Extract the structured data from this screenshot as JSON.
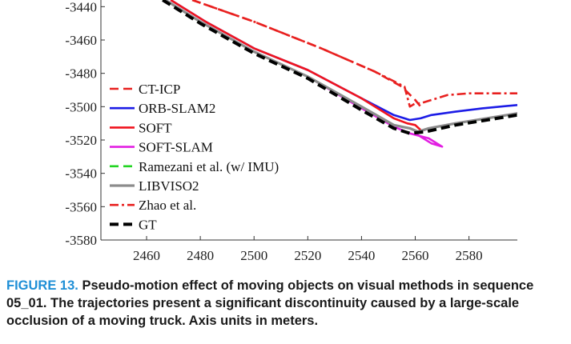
{
  "caption": {
    "label": "FIGURE 13.",
    "text": "Pseudo-motion effect of moving objects on visual methods in sequence 05_01. The trajectories present a significant discontinuity caused by a large-scale occlusion of a moving truck. Axis units in meters."
  },
  "chart_data": {
    "type": "line",
    "title": "",
    "xlabel": "",
    "ylabel": "",
    "xlim": [
      2443,
      2598
    ],
    "ylim": [
      -3580,
      -3436
    ],
    "x_ticks": [
      2460,
      2480,
      2500,
      2520,
      2540,
      2560,
      2580
    ],
    "y_ticks": [
      -3440,
      -3460,
      -3480,
      -3500,
      -3520,
      -3540,
      -3560,
      -3580
    ],
    "x_tick_labels": [
      "2460",
      "2480",
      "2500",
      "2520",
      "2540",
      "2560",
      "2580"
    ],
    "y_tick_labels": [
      "-3440",
      "-3460",
      "-3480",
      "-3500",
      "-3520",
      "-3540",
      "-3560",
      "-3580"
    ],
    "grid": false,
    "legend_position": "left",
    "series": [
      {
        "name": "Zhao et al.",
        "color": "#e8201f",
        "dash": "dashdot",
        "points": [
          [
            2477,
            -3436
          ],
          [
            2500,
            -3449
          ],
          [
            2525,
            -3465
          ],
          [
            2545,
            -3479
          ],
          [
            2556,
            -3488
          ],
          [
            2558,
            -3500
          ],
          [
            2560,
            -3498
          ],
          [
            2562,
            -3498
          ],
          [
            2566,
            -3496
          ],
          [
            2572,
            -3493
          ],
          [
            2580,
            -3492
          ],
          [
            2598,
            -3492
          ]
        ]
      },
      {
        "name": "CT-ICP",
        "color": "#e8201f",
        "dash": "dashed",
        "points": [
          [
            2477,
            -3436
          ],
          [
            2500,
            -3449
          ],
          [
            2525,
            -3465
          ],
          [
            2545,
            -3479
          ],
          [
            2555,
            -3488
          ],
          [
            2560,
            -3496
          ],
          [
            2562,
            -3500
          ]
        ]
      },
      {
        "name": "ORB-SLAM2",
        "color": "#1c1ce6",
        "dash": "solid",
        "points": [
          [
            2469,
            -3436
          ],
          [
            2482,
            -3449
          ],
          [
            2500,
            -3465
          ],
          [
            2520,
            -3478
          ],
          [
            2540,
            -3495
          ],
          [
            2552,
            -3505
          ],
          [
            2558,
            -3508
          ],
          [
            2562,
            -3507
          ],
          [
            2566,
            -3505
          ],
          [
            2575,
            -3503
          ],
          [
            2585,
            -3501
          ],
          [
            2598,
            -3499
          ]
        ]
      },
      {
        "name": "SOFT",
        "color": "#f0141e",
        "dash": "solid",
        "points": [
          [
            2469,
            -3436
          ],
          [
            2482,
            -3449
          ],
          [
            2500,
            -3465
          ],
          [
            2520,
            -3478
          ],
          [
            2540,
            -3495
          ],
          [
            2552,
            -3507
          ],
          [
            2557,
            -3510
          ],
          [
            2560,
            -3511
          ],
          [
            2562,
            -3514
          ]
        ]
      },
      {
        "name": "SOFT-SLAM",
        "color": "#e21fe2",
        "dash": "solid",
        "points": [
          [
            2467,
            -3436
          ],
          [
            2480,
            -3449
          ],
          [
            2500,
            -3467
          ],
          [
            2520,
            -3482
          ],
          [
            2540,
            -3501
          ],
          [
            2552,
            -3512
          ],
          [
            2558,
            -3516
          ],
          [
            2565,
            -3519
          ],
          [
            2570,
            -3524
          ],
          [
            2566,
            -3522
          ],
          [
            2560,
            -3516
          ],
          [
            2565,
            -3513
          ],
          [
            2575,
            -3510
          ],
          [
            2598,
            -3504
          ]
        ]
      },
      {
        "name": "LIBVISO2",
        "color": "#8c8c8c",
        "dash": "solid",
        "points": [
          [
            2467,
            -3436
          ],
          [
            2480,
            -3449
          ],
          [
            2500,
            -3467
          ],
          [
            2520,
            -3482
          ],
          [
            2540,
            -3500
          ],
          [
            2552,
            -3511
          ],
          [
            2558,
            -3513
          ],
          [
            2561,
            -3515
          ],
          [
            2565,
            -3513
          ],
          [
            2575,
            -3510
          ],
          [
            2598,
            -3504
          ]
        ]
      },
      {
        "name": "Ramezani et al. (w/ IMU)",
        "color": "#22d422",
        "dash": "dashed",
        "points": [
          [
            2466,
            -3436
          ],
          [
            2480,
            -3450
          ],
          [
            2500,
            -3468
          ],
          [
            2520,
            -3483
          ],
          [
            2540,
            -3502
          ],
          [
            2552,
            -3513
          ],
          [
            2558,
            -3516
          ],
          [
            2564,
            -3515
          ],
          [
            2575,
            -3511
          ],
          [
            2598,
            -3505
          ]
        ]
      },
      {
        "name": "GT",
        "color": "#000000",
        "dash": "dashed",
        "points": [
          [
            2466,
            -3436
          ],
          [
            2480,
            -3450
          ],
          [
            2500,
            -3468
          ],
          [
            2520,
            -3483
          ],
          [
            2540,
            -3502
          ],
          [
            2552,
            -3513
          ],
          [
            2558,
            -3516
          ],
          [
            2564,
            -3515
          ],
          [
            2575,
            -3511
          ],
          [
            2598,
            -3505
          ]
        ]
      }
    ],
    "legend_order": [
      "CT-ICP",
      "ORB-SLAM2",
      "SOFT",
      "SOFT-SLAM",
      "Ramezani et al. (w/ IMU)",
      "LIBVISO2",
      "Zhao et al.",
      "GT"
    ]
  }
}
